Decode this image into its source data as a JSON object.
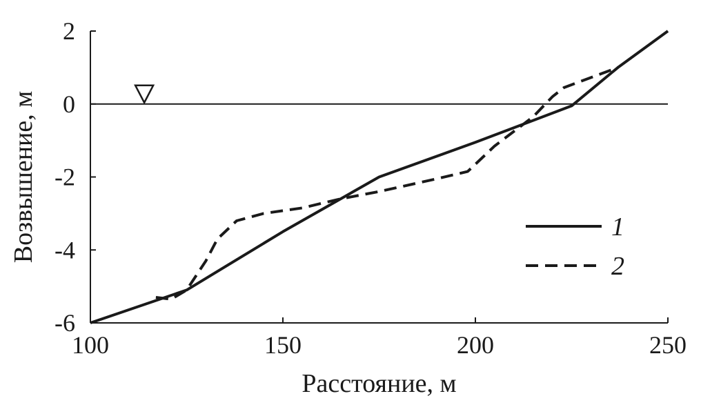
{
  "chart_data": {
    "type": "line",
    "xlabel": "Расстояние, м",
    "ylabel": "Возвышение, м",
    "xlim": [
      100,
      250
    ],
    "ylim": [
      -6,
      2
    ],
    "xticks": [
      100,
      150,
      200,
      250
    ],
    "yticks": [
      2,
      0,
      -2,
      -4,
      -6
    ],
    "x_tick_labels": [
      "100",
      "150",
      "200",
      "250"
    ],
    "y_tick_labels": [
      "2",
      "0",
      "-2",
      "-4",
      "-6"
    ],
    "reference_line": {
      "y": 0,
      "marker": "triangle-down",
      "marker_x": 114
    },
    "legend_position": "right",
    "series": [
      {
        "name": "1",
        "style": "solid",
        "points": [
          [
            100,
            -6
          ],
          [
            125,
            -5.1
          ],
          [
            150,
            -3.5
          ],
          [
            175,
            -2.0
          ],
          [
            200,
            -1.05
          ],
          [
            225,
            -0.05
          ],
          [
            237,
            1.0
          ],
          [
            250,
            2.0
          ]
        ]
      },
      {
        "name": "2",
        "style": "dashed",
        "points": [
          [
            117,
            -5.3
          ],
          [
            121,
            -5.35
          ],
          [
            125,
            -5.1
          ],
          [
            130,
            -4.3
          ],
          [
            133,
            -3.7
          ],
          [
            138,
            -3.2
          ],
          [
            145,
            -3.0
          ],
          [
            155,
            -2.85
          ],
          [
            165,
            -2.6
          ],
          [
            175,
            -2.4
          ],
          [
            190,
            -2.05
          ],
          [
            198,
            -1.85
          ],
          [
            205,
            -1.15
          ],
          [
            215,
            -0.35
          ],
          [
            220,
            0.2
          ],
          [
            223,
            0.45
          ],
          [
            237,
            1.0
          ]
        ]
      }
    ]
  }
}
